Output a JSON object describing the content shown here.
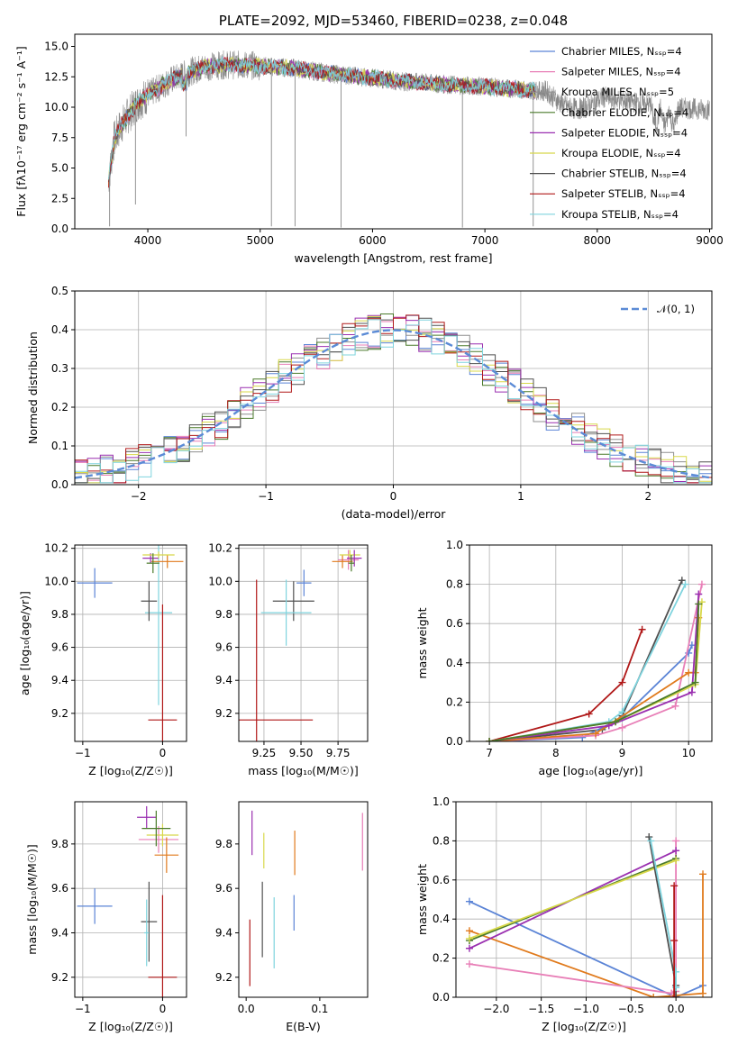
{
  "colors": {
    "Chabrier MILES": "#5b84d6",
    "Salpeter MILES": "#e87fb7",
    "Kroupa MILES": "#8f8f8f",
    "Chabrier ELODIE": "#4a7a2a",
    "Salpeter ELODIE": "#9a2fb0",
    "Kroupa ELODIE": "#d8d84a",
    "Chabrier STELIB": "#505050",
    "Salpeter STELIB": "#b01818",
    "Kroupa STELIB": "#7fd4de",
    "orange": "#e07a1c",
    "normal": "#5b8bd6"
  },
  "chart_data": [
    {
      "id": "spectrum",
      "type": "line",
      "title": "PLATE=2092, MJD=53460, FIBERID=0238, z=0.048",
      "xlabel": "wavelength [Angstrom, rest frame]",
      "ylabel": "Flux [fλ10⁻¹⁷ erg cm⁻² s⁻¹ A⁻¹]",
      "xlim": [
        3350,
        9020
      ],
      "ylim": [
        0,
        16
      ],
      "xticks": [
        4000,
        5000,
        6000,
        7000,
        8000,
        9000
      ],
      "yticks": [
        0.0,
        2.5,
        5.0,
        7.5,
        10.0,
        12.5,
        15.0
      ],
      "grid": false,
      "legend_position": "top-right",
      "legend": [
        {
          "name": "Chabrier MILES",
          "nssp": "Nₛₛₚ=4"
        },
        {
          "name": "Salpeter MILES",
          "nssp": "Nₛₛₚ=4"
        },
        {
          "name": "Kroupa MILES",
          "nssp": "Nₛₛₚ=5"
        },
        {
          "name": "Chabrier ELODIE",
          "nssp": "Nₛₛₚ=4"
        },
        {
          "name": "Salpeter ELODIE",
          "nssp": "Nₛₛₚ=4"
        },
        {
          "name": "Kroupa ELODIE",
          "nssp": "Nₛₛₚ=4"
        },
        {
          "name": "Chabrier STELIB",
          "nssp": "Nₛₛₚ=4"
        },
        {
          "name": "Salpeter STELIB",
          "nssp": "Nₛₛₚ=4"
        },
        {
          "name": "Kroupa STELIB",
          "nssp": "Nₛₛₚ=4"
        }
      ],
      "data_x": [
        3650,
        3700,
        3750,
        3800,
        3900,
        4000,
        4100,
        4200,
        4300,
        4400,
        4500,
        4700,
        5000,
        5300,
        5600,
        6000,
        6300,
        6600,
        7000,
        7400,
        7800,
        8200,
        8600,
        9000
      ],
      "data_y": [
        4.0,
        7.3,
        8.3,
        9.0,
        10.3,
        11.0,
        11.6,
        12.2,
        12.6,
        13.0,
        13.3,
        13.5,
        13.4,
        13.2,
        12.8,
        12.4,
        12.1,
        11.9,
        11.7,
        11.4,
        11.2,
        10.6,
        10.0,
        9.8
      ],
      "absorption_lines": [
        {
          "x": 3660,
          "y": 0.2
        },
        {
          "x": 3890,
          "y": 2.0
        },
        {
          "x": 4340,
          "y": 7.6
        },
        {
          "x": 5100,
          "y": 0.2
        },
        {
          "x": 5310,
          "y": 0.2
        },
        {
          "x": 5720,
          "y": 0.1
        },
        {
          "x": 6800,
          "y": 0.1
        },
        {
          "x": 7430,
          "y": 0.2
        }
      ]
    },
    {
      "id": "residuals",
      "type": "histogram",
      "xlabel": "(data-model)/error",
      "ylabel": "Normed distribution",
      "xlim": [
        -2.5,
        2.5
      ],
      "ylim": [
        0,
        0.5
      ],
      "xticks": [
        -2,
        -1,
        0,
        1,
        2
      ],
      "yticks": [
        0.0,
        0.1,
        0.2,
        0.3,
        0.4,
        0.5
      ],
      "grid": true,
      "legend_position": "top-right",
      "legend": [
        {
          "name": "𝒩(0, 1)"
        }
      ],
      "bins": {
        "start": -2.5,
        "width": 0.1
      }
    },
    {
      "id": "age-vs-Z",
      "type": "errorbar",
      "xlabel": "Z [log₁₀(Z/Z☉)]",
      "ylabel": "age  [log₁₀(age/yr)]",
      "xlim": [
        -1.1,
        0.3
      ],
      "ylim": [
        9.03,
        10.22
      ],
      "xticks": [
        -1,
        0
      ],
      "yticks": [
        9.2,
        9.4,
        9.6,
        9.8,
        10.0,
        10.2
      ],
      "grid": true,
      "points": [
        {
          "series": "Chabrier MILES",
          "x": -0.85,
          "y": 9.99,
          "xerr": 0.22,
          "yerr": 0.09
        },
        {
          "series": "Kroupa STELIB",
          "x": -0.05,
          "y": 9.81,
          "xerr": 0.17,
          "yerr": 0.56
        },
        {
          "series": "Salpeter STELIB",
          "x": 0.0,
          "y": 9.16,
          "xerr": 0.18,
          "yerr": 0.7
        },
        {
          "series": "Chabrier STELIB",
          "x": -0.17,
          "y": 9.88,
          "xerr": 0.1,
          "yerr": 0.12
        },
        {
          "series": "Salpeter ELODIE",
          "x": -0.15,
          "y": 10.14,
          "xerr": 0.1,
          "yerr": 0.03
        },
        {
          "series": "orange",
          "x": 0.06,
          "y": 10.12,
          "xerr": 0.2,
          "yerr": 0.04
        },
        {
          "series": "Kroupa ELODIE",
          "x": -0.05,
          "y": 10.16,
          "xerr": 0.2,
          "yerr": 0.02
        },
        {
          "series": "Chabrier ELODIE",
          "x": -0.12,
          "y": 10.11,
          "xerr": 0.08,
          "yerr": 0.06
        }
      ]
    },
    {
      "id": "age-vs-mass",
      "type": "errorbar",
      "xlabel": "mass [log₁₀(M/M☉)]",
      "xlim": [
        9.08,
        9.95
      ],
      "ylim": [
        9.03,
        10.22
      ],
      "xticks": [
        9.25,
        9.5,
        9.75
      ],
      "yticks": [
        9.2,
        9.4,
        9.6,
        9.8,
        10.0,
        10.2
      ],
      "grid": true,
      "points": [
        {
          "series": "Chabrier MILES",
          "x": 9.52,
          "y": 9.99,
          "xerr": 0.05,
          "yerr": 0.08
        },
        {
          "series": "Chabrier STELIB",
          "x": 9.45,
          "y": 9.88,
          "xerr": 0.14,
          "yerr": 0.12
        },
        {
          "series": "Kroupa STELIB",
          "x": 9.4,
          "y": 9.81,
          "xerr": 0.17,
          "yerr": 0.2
        },
        {
          "series": "Salpeter STELIB",
          "x": 9.2,
          "y": 9.16,
          "xerr": 0.38,
          "yerr": 0.85
        },
        {
          "series": "Salpeter MILES",
          "x": 9.82,
          "y": 10.13,
          "xerr": 0.07,
          "yerr": 0.06
        },
        {
          "series": "orange",
          "x": 9.78,
          "y": 10.12,
          "xerr": 0.07,
          "yerr": 0.04
        },
        {
          "series": "Kroupa ELODIE",
          "x": 9.83,
          "y": 10.16,
          "xerr": 0.07,
          "yerr": 0.03
        },
        {
          "series": "Salpeter ELODIE",
          "x": 9.86,
          "y": 10.14,
          "xerr": 0.05,
          "yerr": 0.05
        },
        {
          "series": "Chabrier ELODIE",
          "x": 9.84,
          "y": 10.11,
          "xerr": 0.02,
          "yerr": 0.05
        }
      ]
    },
    {
      "id": "mass-weight-vs-age",
      "type": "line",
      "xlabel": "age  [log₁₀(age/yr)]",
      "ylabel": "mass weight",
      "xlim": [
        6.7,
        10.35
      ],
      "ylim": [
        0,
        1
      ],
      "xticks": [
        7,
        8,
        9,
        10
      ],
      "yticks": [
        0.0,
        0.2,
        0.4,
        0.6,
        0.8,
        1.0
      ],
      "grid": true,
      "series": [
        {
          "name": "Salpeter STELIB",
          "x": [
            7.0,
            8.5,
            9.0,
            9.3
          ],
          "y": [
            0.0,
            0.14,
            0.3,
            0.57
          ]
        },
        {
          "name": "Chabrier STELIB",
          "x": [
            7.0,
            8.7,
            9.0,
            9.9
          ],
          "y": [
            0.0,
            0.06,
            0.13,
            0.82
          ]
        },
        {
          "name": "Kroupa STELIB",
          "x": [
            7.0,
            8.8,
            9.0,
            9.95
          ],
          "y": [
            0.0,
            0.1,
            0.15,
            0.8
          ]
        },
        {
          "name": "Chabrier MILES",
          "x": [
            7.0,
            8.4,
            9.0,
            10.0,
            10.05
          ],
          "y": [
            0.0,
            0.02,
            0.12,
            0.45,
            0.49
          ]
        },
        {
          "name": "Salpeter MILES",
          "x": [
            7.0,
            8.6,
            9.0,
            9.8,
            10.2
          ],
          "y": [
            0.0,
            0.03,
            0.07,
            0.18,
            0.8
          ]
        },
        {
          "name": "orange",
          "x": [
            7.0,
            8.6,
            10.0,
            10.1,
            10.15
          ],
          "y": [
            0.0,
            0.04,
            0.35,
            0.35,
            0.63
          ]
        },
        {
          "name": "Salpeter ELODIE",
          "x": [
            7.0,
            8.8,
            10.05,
            10.15
          ],
          "y": [
            0.0,
            0.08,
            0.25,
            0.75
          ]
        },
        {
          "name": "Kroupa ELODIE",
          "x": [
            7.0,
            8.9,
            10.1,
            10.2
          ],
          "y": [
            0.0,
            0.1,
            0.29,
            0.71
          ]
        },
        {
          "name": "Chabrier ELODIE",
          "x": [
            7.0,
            8.9,
            10.1,
            10.15
          ],
          "y": [
            0.0,
            0.1,
            0.3,
            0.7
          ]
        }
      ]
    },
    {
      "id": "mass-vs-Z",
      "type": "errorbar",
      "xlabel": "Z [log₁₀(Z/Z☉)]",
      "ylabel": "mass [log₁₀(M/M☉)]",
      "xlim": [
        -1.1,
        0.3
      ],
      "ylim": [
        9.11,
        9.99
      ],
      "xticks": [
        -1,
        0
      ],
      "yticks": [
        9.2,
        9.4,
        9.6,
        9.8
      ],
      "grid": true,
      "points": [
        {
          "series": "Chabrier MILES",
          "x": -0.85,
          "y": 9.52,
          "xerr": 0.22,
          "yerr": 0.08
        },
        {
          "series": "Chabrier STELIB",
          "x": -0.17,
          "y": 9.45,
          "xerr": 0.1,
          "yerr": 0.18
        },
        {
          "series": "Kroupa STELIB",
          "x": -0.2,
          "y": 9.4,
          "xerr": 0.03,
          "yerr": 0.15
        },
        {
          "series": "Salpeter STELIB",
          "x": 0.0,
          "y": 9.2,
          "xerr": 0.18,
          "yerr": 0.37
        },
        {
          "series": "Salpeter ELODIE",
          "x": -0.2,
          "y": 9.92,
          "xerr": 0.12,
          "yerr": 0.05
        },
        {
          "series": "Salpeter MILES",
          "x": -0.05,
          "y": 9.82,
          "xerr": 0.25,
          "yerr": 0.06
        },
        {
          "series": "orange",
          "x": 0.05,
          "y": 9.75,
          "xerr": 0.15,
          "yerr": 0.08
        },
        {
          "series": "Kroupa ELODIE",
          "x": 0.0,
          "y": 9.84,
          "xerr": 0.2,
          "yerr": 0.05
        },
        {
          "series": "Chabrier ELODIE",
          "x": -0.08,
          "y": 9.87,
          "xerr": 0.18,
          "yerr": 0.08
        }
      ]
    },
    {
      "id": "mass-vs-EBV",
      "type": "errorbar",
      "xlabel": "E(B-V)",
      "xlim": [
        -0.01,
        0.165
      ],
      "ylim": [
        9.11,
        9.99
      ],
      "xticks": [
        0.0,
        0.1
      ],
      "yticks": [
        9.2,
        9.4,
        9.6,
        9.8
      ],
      "grid": false,
      "points": [
        {
          "series": "Salpeter STELIB",
          "x": 0.005,
          "y": 9.31,
          "yerr": 0.15
        },
        {
          "series": "Salpeter ELODIE",
          "x": 0.008,
          "y": 9.85,
          "yerr": 0.1
        },
        {
          "series": "Chabrier STELIB",
          "x": 0.022,
          "y": 9.46,
          "yerr": 0.17
        },
        {
          "series": "Kroupa ELODIE",
          "x": 0.024,
          "y": 9.77,
          "yerr": 0.08
        },
        {
          "series": "Kroupa STELIB",
          "x": 0.038,
          "y": 9.4,
          "yerr": 0.16
        },
        {
          "series": "Chabrier MILES",
          "x": 0.065,
          "y": 9.49,
          "yerr": 0.08
        },
        {
          "series": "orange",
          "x": 0.066,
          "y": 9.76,
          "yerr": 0.1
        },
        {
          "series": "Salpeter MILES",
          "x": 0.158,
          "y": 9.81,
          "yerr": 0.13
        }
      ]
    },
    {
      "id": "mass-weight-vs-Z",
      "type": "line",
      "xlabel": "Z [log₁₀(Z/Z☉)]",
      "ylabel": "mass weight",
      "xlim": [
        -2.45,
        0.4
      ],
      "ylim": [
        0,
        1
      ],
      "xticks": [
        -2.0,
        -1.5,
        -1.0,
        -0.5,
        0.0
      ],
      "yticks": [
        0.0,
        0.2,
        0.4,
        0.6,
        0.8,
        1.0
      ],
      "grid": true,
      "series": [
        {
          "name": "Chabrier MILES",
          "x": [
            -2.3,
            0.0,
            0.3
          ],
          "y": [
            0.49,
            0.0,
            0.06
          ]
        },
        {
          "name": "orange",
          "x": [
            -2.3,
            -0.25,
            0.3,
            0.3
          ],
          "y": [
            0.34,
            0.0,
            0.02,
            0.63
          ]
        },
        {
          "name": "Salpeter MILES",
          "x": [
            -2.3,
            -0.05,
            0.0,
            0.0
          ],
          "y": [
            0.17,
            0.02,
            0.03,
            0.8
          ]
        },
        {
          "name": "Salpeter ELODIE",
          "x": [
            -2.3,
            0.0
          ],
          "y": [
            0.25,
            0.75
          ]
        },
        {
          "name": "Chabrier ELODIE",
          "x": [
            -2.3,
            0.0
          ],
          "y": [
            0.29,
            0.71
          ]
        },
        {
          "name": "Kroupa ELODIE",
          "x": [
            -2.3,
            0.0
          ],
          "y": [
            0.3,
            0.7
          ]
        },
        {
          "name": "Chabrier STELIB",
          "x": [
            -0.3,
            0.0,
            0.0
          ],
          "y": [
            0.82,
            0.06,
            0.0
          ]
        },
        {
          "name": "Kroupa STELIB",
          "x": [
            -0.28,
            0.0,
            0.0
          ],
          "y": [
            0.8,
            0.13,
            0.05
          ]
        },
        {
          "name": "Salpeter STELIB",
          "x": [
            -0.02,
            -0.02,
            -0.02
          ],
          "y": [
            0.0,
            0.29,
            0.57
          ]
        }
      ]
    }
  ]
}
